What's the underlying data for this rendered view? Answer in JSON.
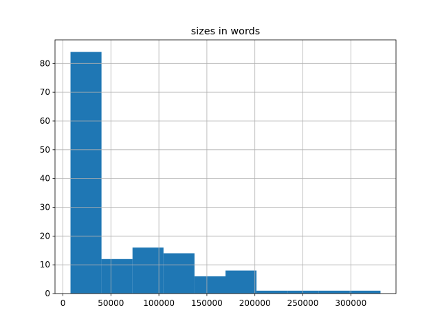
{
  "chart_data": {
    "type": "histogram",
    "title": "sizes in words",
    "bins": [
      7900,
      40200,
      72500,
      104800,
      137100,
      169400,
      201700,
      234000,
      266300,
      298600,
      330900
    ],
    "counts": [
      84,
      12,
      16,
      14,
      6,
      8,
      1,
      1,
      1,
      1
    ],
    "color": "#1f77b4",
    "xlim": [
      -8250,
      347050
    ],
    "xticks": [
      0,
      50000,
      100000,
      150000,
      200000,
      250000,
      300000
    ],
    "ylim": [
      0,
      88.2
    ],
    "yticks": [
      0,
      10,
      20,
      30,
      40,
      50,
      60,
      70,
      80
    ],
    "grid": true
  }
}
